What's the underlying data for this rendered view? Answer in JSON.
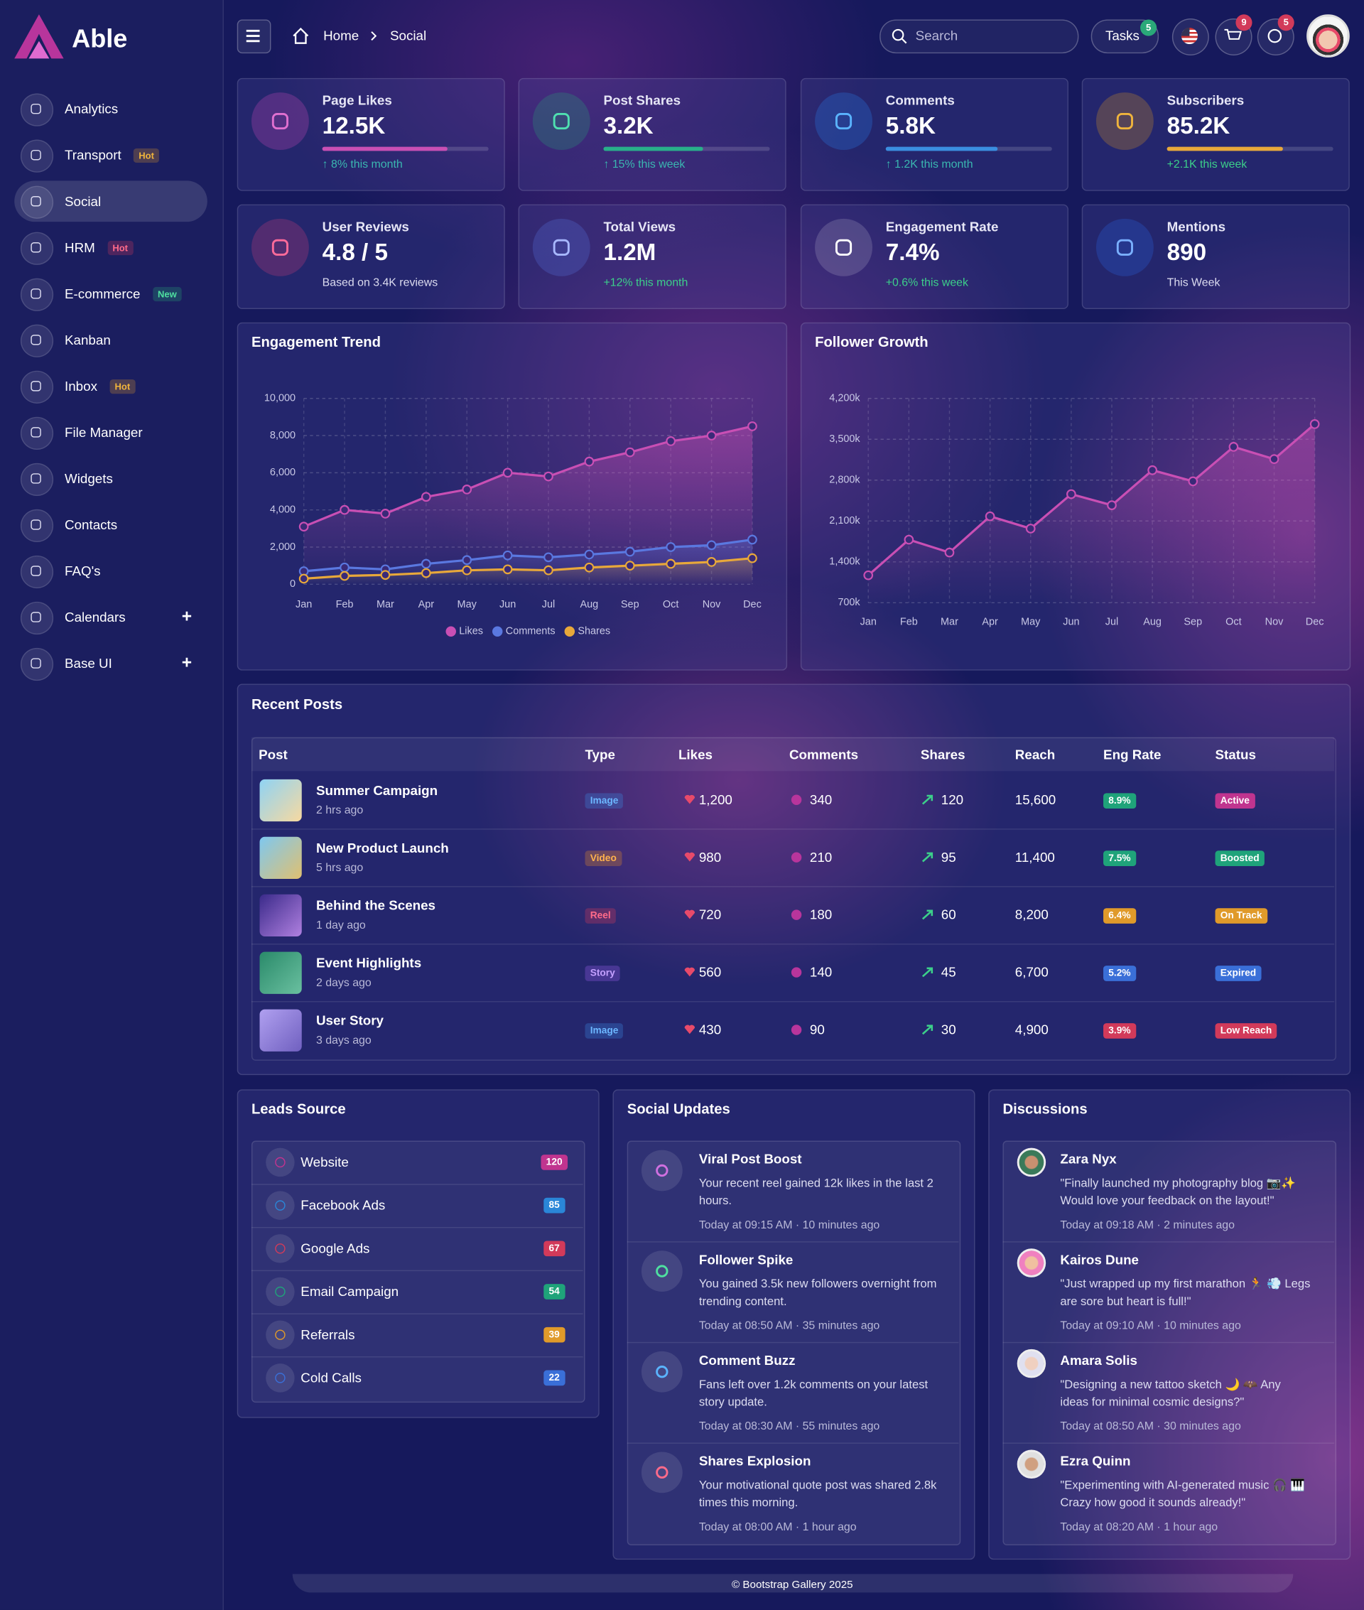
{
  "sidebar": {
    "brand": "Able",
    "items": [
      {
        "label": "Analytics"
      },
      {
        "label": "Transport",
        "badge": "Hot"
      },
      {
        "label": "Social"
      },
      {
        "label": "HRM",
        "badge": "Hot"
      },
      {
        "label": "E-commerce",
        "badge": "New"
      },
      {
        "label": "Kanban"
      },
      {
        "label": "Inbox",
        "badge": "Hot"
      },
      {
        "label": "File Manager"
      },
      {
        "label": "Widgets"
      },
      {
        "label": "Contacts"
      },
      {
        "label": "FAQ's"
      },
      {
        "label": "Calendars",
        "toggle": "+"
      },
      {
        "label": "Base UI",
        "toggle": "+"
      }
    ]
  },
  "header": {
    "breadcrumb": [
      "Home",
      "Social"
    ],
    "search": "Search",
    "tasks": "Tasks",
    "tasks_count": "5",
    "cart_count": "9",
    "notification_count": "5"
  },
  "stats": [
    {
      "title": "Page Likes",
      "value": "12.5K",
      "progress": 75,
      "note": "↑ 8% this month"
    },
    {
      "title": "Post Shares",
      "value": "3.2K",
      "progress": 60,
      "note": "↑ 15% this week"
    },
    {
      "title": "Comments",
      "value": "5.8K",
      "progress": 67,
      "note": "↑ 1.2K this month"
    },
    {
      "title": "Subscribers",
      "value": "85.2K",
      "progress": 70,
      "note": "+2.1K this week"
    },
    {
      "title": "User Reviews",
      "value": "4.8 / 5",
      "note": "Based on 3.4K reviews"
    },
    {
      "title": "Total Views",
      "value": "1.2M",
      "note": "+12% this month"
    },
    {
      "title": "Engagement Rate",
      "value": "7.4%",
      "note": "+0.6% this week"
    },
    {
      "title": "Mentions",
      "value": "890",
      "note": "This Week"
    }
  ],
  "chart_data": [
    {
      "type": "line",
      "title": "Engagement Trend",
      "categories": [
        "Jan",
        "Feb",
        "Mar",
        "Apr",
        "May",
        "Jun",
        "Jul",
        "Aug",
        "Sep",
        "Oct",
        "Nov",
        "Dec"
      ],
      "series": [
        {
          "name": "Likes",
          "color": "#c94fb4",
          "values": [
            3100,
            4000,
            3800,
            4700,
            5100,
            6000,
            5800,
            6600,
            7100,
            7700,
            8000,
            8500
          ]
        },
        {
          "name": "Comments",
          "color": "#5a78e0",
          "values": [
            700,
            900,
            800,
            1100,
            1300,
            1550,
            1450,
            1600,
            1750,
            2000,
            2100,
            2400
          ]
        },
        {
          "name": "Shares",
          "color": "#e8a83a",
          "values": [
            300,
            450,
            500,
            600,
            750,
            800,
            750,
            900,
            1000,
            1100,
            1200,
            1400
          ]
        }
      ],
      "ylim": [
        0,
        10000
      ],
      "yticks": [
        0,
        {
          "value": 2000,
          "label": "2,000"
        },
        {
          "value": 4000,
          "label": "4,000"
        },
        {
          "value": 6000,
          "label": "6,000"
        },
        {
          "value": 8000,
          "label": "8,000"
        },
        {
          "value": 10000,
          "label": "10,000"
        }
      ],
      "grid": true,
      "legend": "bottom"
    },
    {
      "type": "line",
      "title": "Follower Growth",
      "categories": [
        "Jan",
        "Feb",
        "Mar",
        "Apr",
        "May",
        "Jun",
        "Jul",
        "Aug",
        "Sep",
        "Oct",
        "Nov",
        "Dec"
      ],
      "series": [
        {
          "name": "Followers",
          "color": "#c94fb4",
          "values": [
            1170000,
            1780000,
            1560000,
            2180000,
            1970000,
            2560000,
            2370000,
            2970000,
            2780000,
            3370000,
            3160000,
            3760000
          ]
        }
      ],
      "ylim": [
        700000,
        4200000
      ],
      "yticks": [
        {
          "value": 700000,
          "label": "700k"
        },
        {
          "value": 1400000,
          "label": "1,400k"
        },
        {
          "value": 2100000,
          "label": "2,100k"
        },
        {
          "value": 2800000,
          "label": "2,800k"
        },
        {
          "value": 3500000,
          "label": "3,500k"
        },
        {
          "value": 4200000,
          "label": "4,200k"
        }
      ],
      "grid": true
    }
  ],
  "recent_posts": {
    "title": "Recent Posts",
    "columns": [
      "Post",
      "Type",
      "Likes",
      "Comments",
      "Shares",
      "Reach",
      "Eng Rate",
      "Status"
    ],
    "rows": [
      {
        "post": "Summer Campaign",
        "time": "2 hrs ago",
        "type": "Image",
        "likes": "1,200",
        "comments": "340",
        "shares": "120",
        "reach": "15,600",
        "eng_rate": "8.9%",
        "status": "Active"
      },
      {
        "post": "New Product Launch",
        "time": "5 hrs ago",
        "type": "Video",
        "likes": "980",
        "comments": "210",
        "shares": "95",
        "reach": "11,400",
        "eng_rate": "7.5%",
        "status": "Boosted"
      },
      {
        "post": "Behind the Scenes",
        "time": "1 day ago",
        "type": "Reel",
        "likes": "720",
        "comments": "180",
        "shares": "60",
        "reach": "8,200",
        "eng_rate": "6.4%",
        "status": "On Track"
      },
      {
        "post": "Event Highlights",
        "time": "2 days ago",
        "type": "Story",
        "likes": "560",
        "comments": "140",
        "shares": "45",
        "reach": "6,700",
        "eng_rate": "5.2%",
        "status": "Expired"
      },
      {
        "post": "User Story",
        "time": "3 days ago",
        "type": "Image",
        "likes": "430",
        "comments": "90",
        "shares": "30",
        "reach": "4,900",
        "eng_rate": "3.9%",
        "status": "Low Reach"
      }
    ]
  },
  "leads": {
    "title": "Leads Source",
    "items": [
      {
        "label": "Website",
        "count": "120"
      },
      {
        "label": "Facebook Ads",
        "count": "85"
      },
      {
        "label": "Google Ads",
        "count": "67"
      },
      {
        "label": "Email Campaign",
        "count": "54"
      },
      {
        "label": "Referrals",
        "count": "39"
      },
      {
        "label": "Cold Calls",
        "count": "22"
      }
    ]
  },
  "social_updates": {
    "title": "Social Updates",
    "items": [
      {
        "title": "Viral Post Boost",
        "text": "Your recent reel gained 12k likes in the last 2 hours.",
        "time": "Today at 09:15 AM · 10 minutes ago"
      },
      {
        "title": "Follower Spike",
        "text": "You gained 3.5k new followers overnight from trending content.",
        "time": "Today at 08:50 AM · 35 minutes ago"
      },
      {
        "title": "Comment Buzz",
        "text": "Fans left over 1.2k comments on your latest story update.",
        "time": "Today at 08:30 AM · 55 minutes ago"
      },
      {
        "title": "Shares Explosion",
        "text": "Your motivational quote post was shared 2.8k times this morning.",
        "time": "Today at 08:00 AM · 1 hour ago"
      }
    ]
  },
  "discussions": {
    "title": "Discussions",
    "items": [
      {
        "name": "Zara Nyx",
        "text": "\"Finally launched my photography blog 📷✨ Would love your feedback on the layout!\"",
        "time": "Today at 09:18 AM · 2 minutes ago"
      },
      {
        "name": "Kairos Dune",
        "text": "\"Just wrapped up my first marathon 🏃 💨 Legs are sore but heart is full!\"",
        "time": "Today at 09:10 AM · 10 minutes ago"
      },
      {
        "name": "Amara Solis",
        "text": "\"Designing a new tattoo sketch 🌙 🦇 Any ideas for minimal cosmic designs?\"",
        "time": "Today at 08:50 AM · 30 minutes ago"
      },
      {
        "name": "Ezra Quinn",
        "text": "\"Experimenting with AI-generated music 🎧 🎹 Crazy how good it sounds already!\"",
        "time": "Today at 08:20 AM · 1 hour ago"
      }
    ]
  },
  "footer": "© Bootstrap Gallery 2025"
}
